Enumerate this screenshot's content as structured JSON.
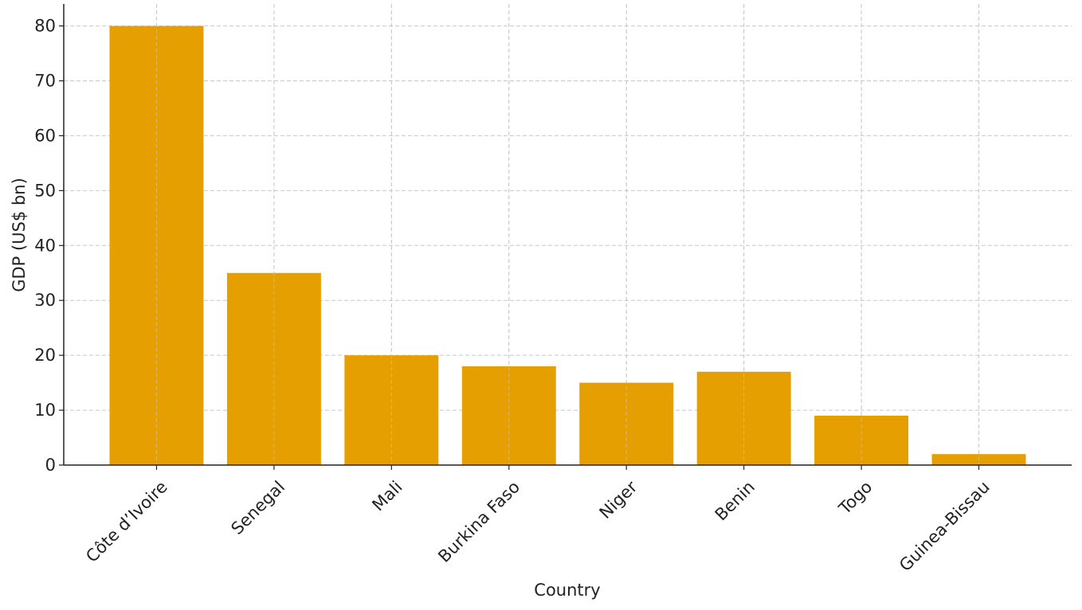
{
  "chart_data": {
    "type": "bar",
    "x_label": "Country",
    "y_label": "GDP (US$ bn)",
    "categories": [
      "Côte d’Ivoire",
      "Senegal",
      "Mali",
      "Burkina Faso",
      "Niger",
      "Benin",
      "Togo",
      "Guinea-Bissau"
    ],
    "values": [
      80,
      35,
      20,
      18,
      15,
      17,
      9,
      2
    ],
    "color": "#e69f00",
    "ylim": [
      0,
      84
    ],
    "yticks": [
      0,
      10,
      20,
      30,
      40,
      50,
      60,
      70,
      80
    ],
    "grid": true
  }
}
